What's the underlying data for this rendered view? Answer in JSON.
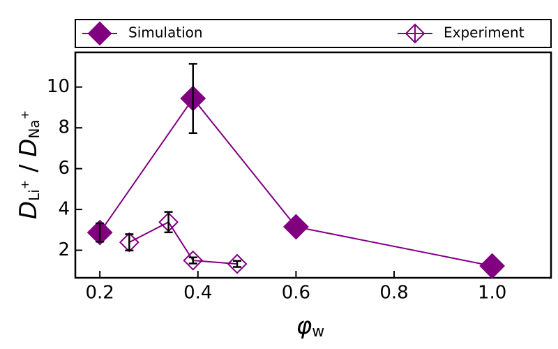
{
  "chart_data": {
    "type": "line",
    "xlabel": [
      "φ",
      "w"
    ],
    "ylabel": [
      "D",
      "Li",
      "+",
      " / ",
      "D",
      "Na",
      "+"
    ],
    "xlim": [
      0.15,
      1.12
    ],
    "ylim": [
      0.65,
      11.7
    ],
    "xticks": [
      0.2,
      0.4,
      0.6,
      0.8,
      {
        "value": 1.0,
        "label": "1.0"
      }
    ],
    "yticks": [
      2,
      4,
      6,
      8,
      10
    ],
    "legend": "top",
    "series": [
      {
        "name": "Simulation",
        "color": "#800080",
        "marker": "filled",
        "x": [
          0.2,
          0.39,
          0.6,
          1.0
        ],
        "values": [
          2.87,
          9.44,
          3.15,
          1.23
        ],
        "yerr": [
          0.45,
          1.7,
          null,
          null
        ]
      },
      {
        "name": "Experiment",
        "color": "#800080",
        "marker": "open",
        "x": [
          0.26,
          0.34,
          0.39,
          0.48
        ],
        "values": [
          2.39,
          3.38,
          1.5,
          1.33
        ],
        "yerr": [
          0.4,
          0.5,
          0.15,
          0.15
        ]
      }
    ]
  }
}
